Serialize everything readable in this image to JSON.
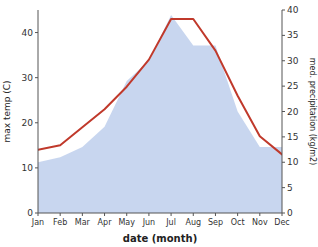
{
  "chart_data": {
    "type": "line",
    "categories": [
      "Jan",
      "Feb",
      "Mar",
      "Apr",
      "May",
      "Jun",
      "Jul",
      "Aug",
      "Sep",
      "Oct",
      "Nov",
      "Dec"
    ],
    "xlabel": "date (month)",
    "ylabel": "max temp (C)",
    "y2label": "med. precipitation (kg/m2)",
    "ylim": [
      0,
      45
    ],
    "yticks": [
      0,
      10,
      20,
      30,
      40
    ],
    "y2lim": [
      0,
      40
    ],
    "y2ticks": [
      0,
      5,
      10,
      15,
      20,
      25,
      30,
      35,
      40
    ],
    "series": [
      {
        "type": "area",
        "axis": "y2",
        "color": "#b0c4e8",
        "values": [
          10,
          11,
          13,
          17,
          26,
          30,
          39,
          33,
          33,
          20,
          13,
          13
        ]
      },
      {
        "type": "line",
        "color": "#c0392b",
        "values": [
          14,
          15,
          19,
          23,
          28,
          34,
          43,
          43,
          36,
          26,
          17,
          13
        ]
      }
    ]
  }
}
